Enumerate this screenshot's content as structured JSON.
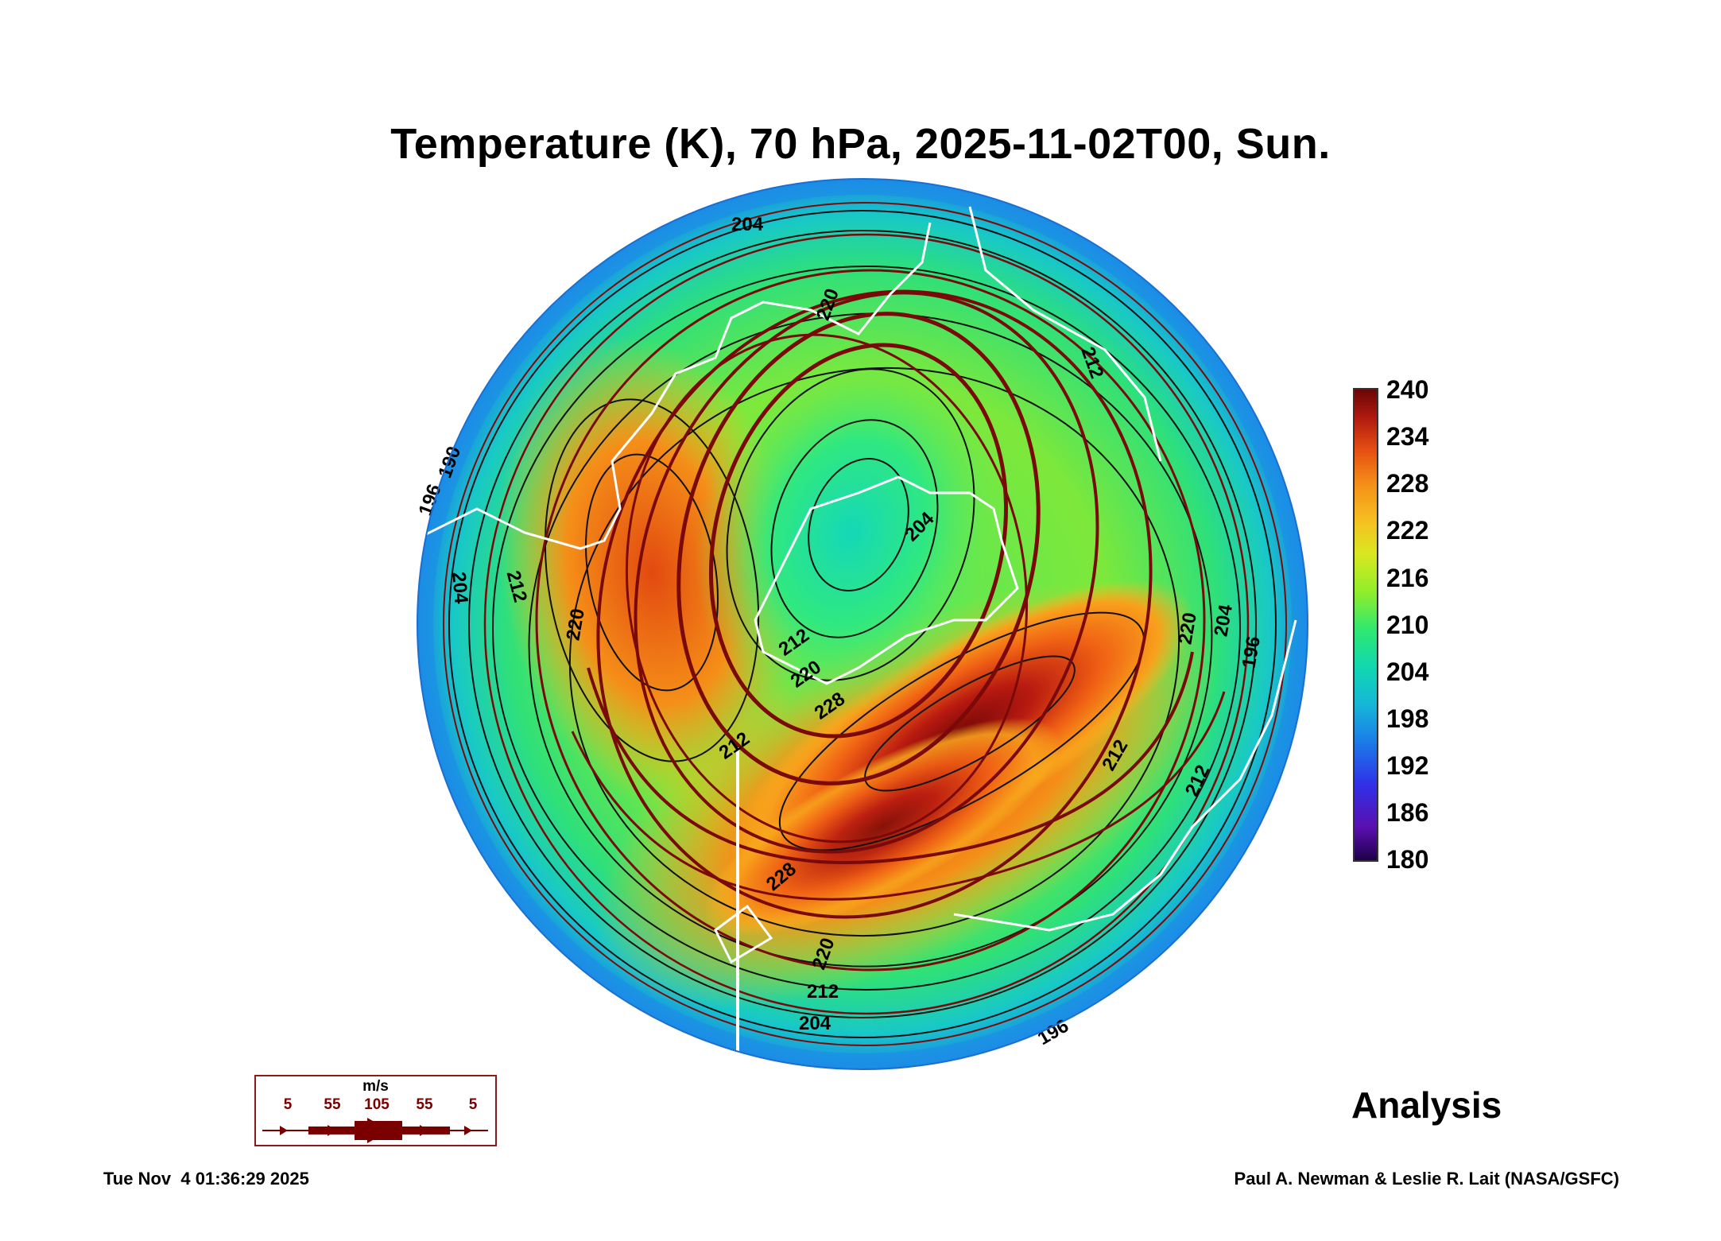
{
  "title": "Temperature (K), 70 hPa, 2025-11-02T00, Sun.",
  "colorbar": {
    "ticks": [
      "240",
      "234",
      "228",
      "222",
      "216",
      "210",
      "204",
      "198",
      "192",
      "186",
      "180"
    ],
    "min": 180,
    "max": 240,
    "colors": {
      "low": "#20004a",
      "mid": "#2fe870",
      "high": "#6a0606"
    }
  },
  "contour_labels": [
    "204",
    "196",
    "190",
    "212",
    "204",
    "220",
    "212",
    "204",
    "220",
    "212",
    "220",
    "228",
    "212",
    "220",
    "204",
    "196",
    "212",
    "228",
    "220",
    "212",
    "204",
    "196",
    "212"
  ],
  "wind_legend": {
    "unit": "m/s",
    "values": [
      "5",
      "55",
      "105",
      "55",
      "5"
    ]
  },
  "status_label": "Analysis",
  "timestamp": "Tue Nov  4 01:36:29 2025",
  "credit": "Paul A. Newman & Leslie R. Lait (NASA/GSFC)",
  "map_colors": {
    "coastline": "#ffffff",
    "streamline": "#7a0a0a",
    "contour": "#111111"
  }
}
